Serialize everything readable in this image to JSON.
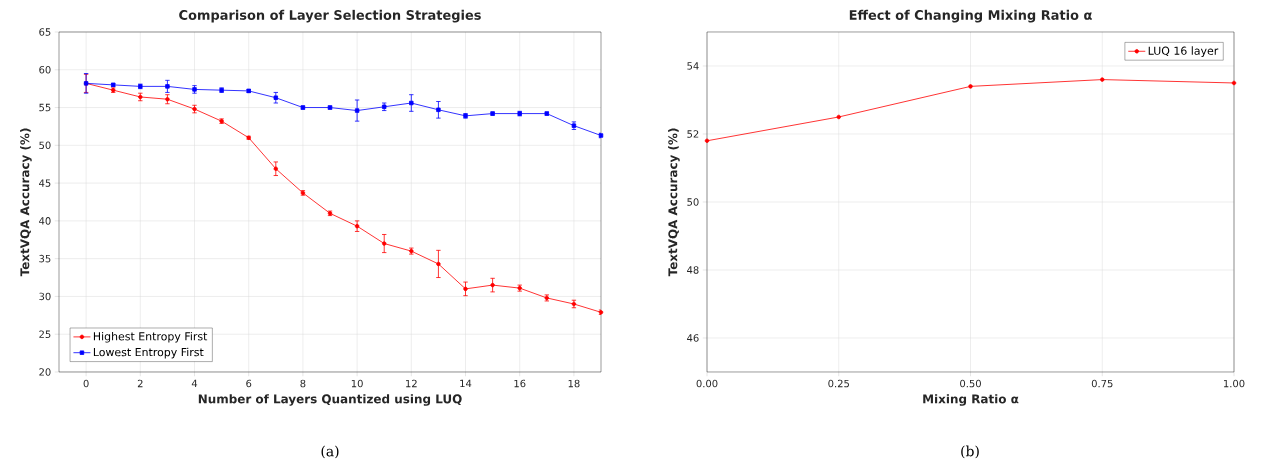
{
  "chart_data": [
    {
      "type": "line",
      "title": "Comparison of Layer Selection Strategies",
      "xlabel": "Number of Layers Quantized using LUQ",
      "ylabel": "TextVQA Accuracy (%)",
      "x": [
        0,
        1,
        2,
        3,
        4,
        5,
        6,
        7,
        8,
        9,
        10,
        11,
        12,
        13,
        14,
        15,
        16,
        17,
        18,
        19
      ],
      "series": [
        {
          "name": "Highest Entropy First",
          "color": "#ff0000",
          "marker": "circle",
          "values": [
            58.2,
            57.3,
            56.4,
            56.1,
            54.8,
            53.2,
            51.0,
            46.9,
            43.7,
            41.0,
            39.3,
            37.0,
            36.0,
            34.3,
            31.0,
            31.5,
            31.1,
            29.8,
            29.0,
            27.9
          ],
          "errors": [
            1.2,
            0.3,
            0.5,
            0.6,
            0.5,
            0.3,
            0.2,
            0.9,
            0.3,
            0.3,
            0.7,
            1.2,
            0.4,
            1.8,
            0.9,
            0.9,
            0.4,
            0.4,
            0.5,
            0.3
          ]
        },
        {
          "name": "Lowest Entropy First",
          "color": "#0000ff",
          "marker": "square",
          "values": [
            58.2,
            58.0,
            57.8,
            57.8,
            57.4,
            57.3,
            57.2,
            56.3,
            55.0,
            55.0,
            54.6,
            55.1,
            55.6,
            54.7,
            53.9,
            54.2,
            54.2,
            54.2,
            52.6,
            51.3
          ],
          "errors": [
            1.3,
            0.2,
            0.3,
            0.8,
            0.5,
            0.3,
            0.2,
            0.7,
            0.2,
            0.2,
            1.4,
            0.5,
            1.1,
            1.1,
            0.3,
            0.2,
            0.3,
            0.2,
            0.5,
            0.3
          ]
        }
      ],
      "xlim": [
        -1,
        19
      ],
      "ylim": [
        20,
        65
      ],
      "xticks": [
        0,
        2,
        4,
        6,
        8,
        10,
        12,
        14,
        16,
        18
      ],
      "yticks": [
        20,
        25,
        30,
        35,
        40,
        45,
        50,
        55,
        60,
        65
      ],
      "grid": true,
      "legend": "bottom left",
      "annotations": [
        "(a)"
      ]
    },
    {
      "type": "line",
      "title": "Effect of Changing Mixing Ratio α",
      "xlabel": "Mixing Ratio α",
      "ylabel": "TextVQA Accuracy (%)",
      "x": [
        0,
        0.25,
        0.5,
        0.75,
        1.0
      ],
      "series": [
        {
          "name": "LUQ 16 layer",
          "color": "#ff0000",
          "marker": "circle",
          "values": [
            51.8,
            52.5,
            53.4,
            53.6,
            53.5
          ]
        }
      ],
      "xlim": [
        0,
        1
      ],
      "ylim": [
        45,
        55
      ],
      "xticks": [
        {
          "value": 0,
          "label": "0.00"
        },
        {
          "value": 0.25,
          "label": "0.25"
        },
        {
          "value": 0.5,
          "label": "0.50"
        },
        {
          "value": 0.75,
          "label": "0.75"
        },
        {
          "value": 1,
          "label": "1.00"
        }
      ],
      "yticks": [
        46,
        48,
        50,
        52,
        54
      ],
      "grid": true,
      "legend": "top right",
      "annotations": [
        "(b)"
      ]
    }
  ]
}
